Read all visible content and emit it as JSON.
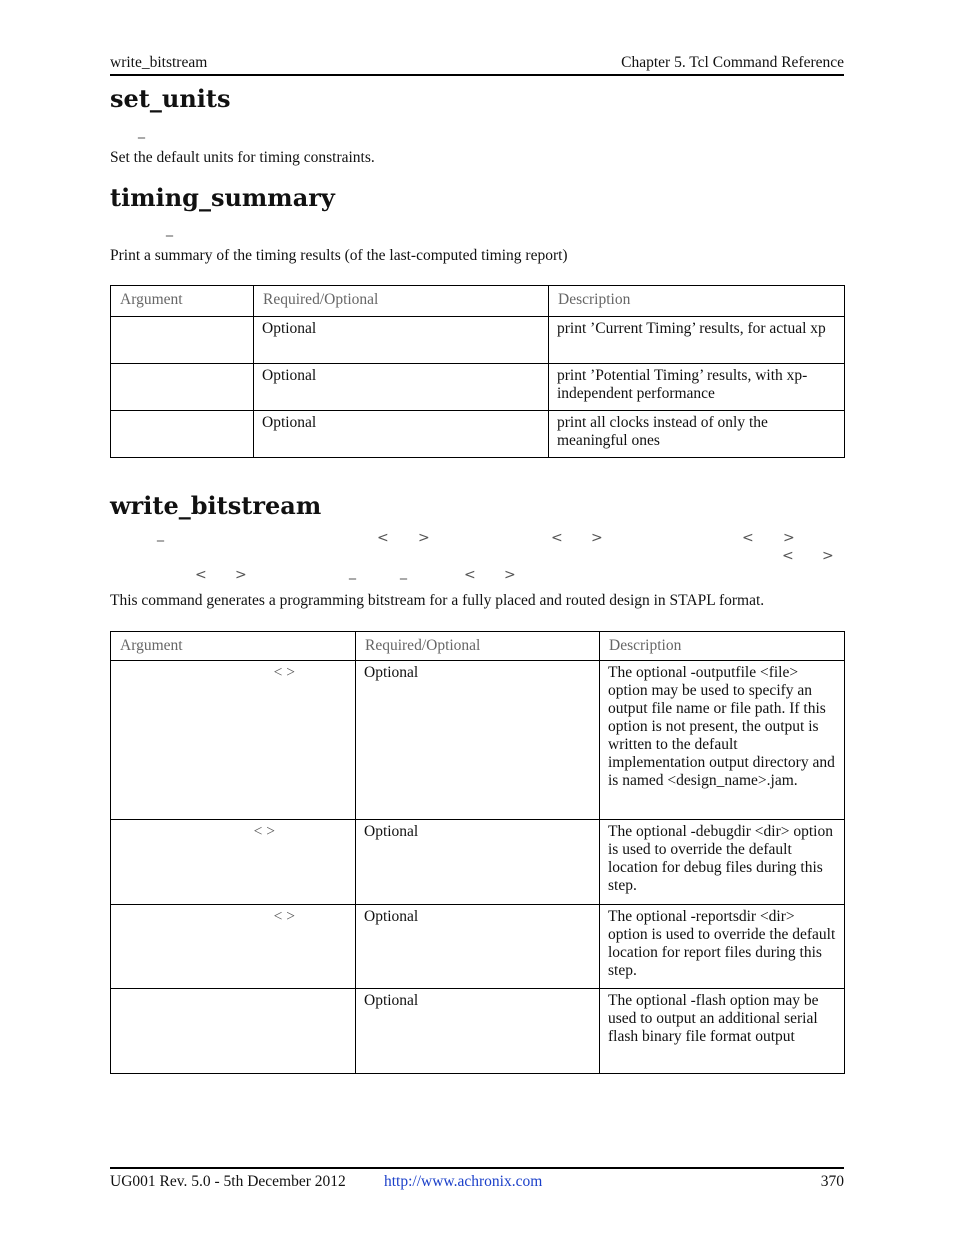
{
  "header": {
    "left": "write_bitstream",
    "right": "Chapter 5. Tcl Command Reference"
  },
  "set_units": {
    "title": "set_units",
    "syntax_glyphs": [
      "_"
    ],
    "description": "Set the default units for timing constraints."
  },
  "timing_summary": {
    "title": "timing_summary",
    "syntax_glyphs": [
      "_"
    ],
    "description": "Print a summary of the timing results (of the last-computed timing report)",
    "table": {
      "headers": [
        "Argument",
        "Required/Optional",
        "Description"
      ],
      "rows": [
        {
          "argument": "",
          "required": "Optional",
          "description": "print ’Current Timing’ results, for actual xp"
        },
        {
          "argument": "",
          "required": "Optional",
          "description": "print ’Potential Timing’ results, with xp-independent performance"
        },
        {
          "argument": "",
          "required": "Optional",
          "description": "print all clocks instead of only the meaningful ones"
        }
      ]
    }
  },
  "write_bitstream": {
    "title": "write_bitstream",
    "syntax_glyphs": [
      "_",
      "<",
      ">",
      "_",
      "_"
    ],
    "description": "This command generates a programming bitstream for a fully placed and routed design in STAPL format.",
    "table": {
      "headers": [
        "Argument",
        "Required/Optional",
        "Description"
      ],
      "rows": [
        {
          "argument": "<   >",
          "required": "Optional",
          "description": "The optional -outputfile <file> option may be used to specify an output file name or file path. If this option is not present, the output is written to the default implementation output directory and is named <design_name>.jam."
        },
        {
          "argument": "<   >",
          "required": "Optional",
          "description": "The optional -debugdir <dir> option is used to override the default location for debug files during this step."
        },
        {
          "argument": "<   >",
          "required": "Optional",
          "description": "The optional -reportsdir <dir> option is used to override the default location for report files during this step."
        },
        {
          "argument": "",
          "required": "Optional",
          "description": "The optional -flash option may be used to output an additional serial flash binary file format output"
        }
      ]
    }
  },
  "footer": {
    "doc": "UG001 Rev. 5.0 - 5th December 2012",
    "link": "http://www.achronix.com",
    "page": "370"
  }
}
